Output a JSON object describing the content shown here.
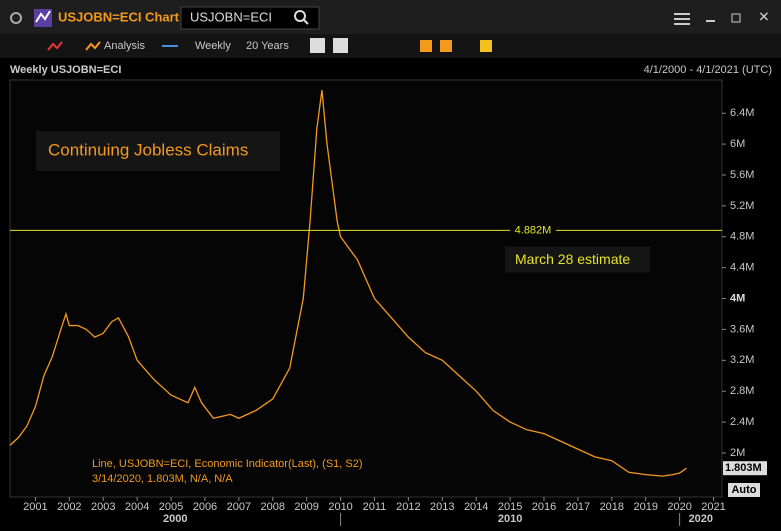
{
  "window": {
    "title": "USJOBN=ECI Chart",
    "search": "USJOBN=ECI"
  },
  "toolbar": {
    "analysis": "Analysis",
    "interval": "Weekly",
    "range": "20 Years"
  },
  "chart_header": {
    "title": "Weekly USJOBN=ECI",
    "range": "4/1/2000 - 4/1/2021 (UTC)"
  },
  "chart_data": {
    "type": "line",
    "title": "Continuing Jobless Claims",
    "x": [
      2000.25,
      2000.5,
      2000.75,
      2001.0,
      2001.25,
      2001.5,
      2001.75,
      2001.9,
      2002.0,
      2002.25,
      2002.5,
      2002.75,
      2003.0,
      2003.25,
      2003.45,
      2003.75,
      2004.0,
      2004.5,
      2005.0,
      2005.5,
      2005.7,
      2005.9,
      2006.25,
      2006.75,
      2007.0,
      2007.5,
      2008.0,
      2008.5,
      2008.9,
      2009.1,
      2009.3,
      2009.45,
      2009.6,
      2009.9,
      2010.0,
      2010.5,
      2011.0,
      2011.5,
      2012.0,
      2012.5,
      2013.0,
      2013.5,
      2014.0,
      2014.5,
      2015.0,
      2015.5,
      2016.0,
      2016.5,
      2017.0,
      2017.5,
      2018.0,
      2018.5,
      2019.0,
      2019.5,
      2019.8,
      2020.0,
      2020.2
    ],
    "series": [
      {
        "color": "#f39a1d",
        "values": [
          2100000,
          2200000,
          2350000,
          2600000,
          3000000,
          3250000,
          3600000,
          3800000,
          3650000,
          3650000,
          3600000,
          3500000,
          3550000,
          3700000,
          3750000,
          3500000,
          3200000,
          2950000,
          2750000,
          2650000,
          2850000,
          2650000,
          2450000,
          2500000,
          2450000,
          2550000,
          2700000,
          3100000,
          4000000,
          5000000,
          6200000,
          6700000,
          6000000,
          5000000,
          4800000,
          4500000,
          4000000,
          3750000,
          3500000,
          3300000,
          3200000,
          3000000,
          2800000,
          2550000,
          2400000,
          2300000,
          2250000,
          2150000,
          2050000,
          1950000,
          1900000,
          1750000,
          1720000,
          1700000,
          1720000,
          1740000,
          1803000
        ]
      }
    ],
    "xlim": [
      2000.25,
      2021.25
    ],
    "xticks": [
      2001,
      2002,
      2003,
      2004,
      2005,
      2006,
      2007,
      2008,
      2009,
      2010,
      2011,
      2012,
      2013,
      2014,
      2015,
      2016,
      2017,
      2018,
      2019,
      2020,
      2021
    ],
    "decades": [
      {
        "value": 2000,
        "label": "2000"
      },
      {
        "value": 2010,
        "label": "2010"
      },
      {
        "value": 2020,
        "label": "2020"
      }
    ],
    "ylim": [
      1430000,
      6830000
    ],
    "yticks": [
      {
        "value": 2000000,
        "label": "2M"
      },
      {
        "value": 2400000,
        "label": "2.4M"
      },
      {
        "value": 2800000,
        "label": "2.8M"
      },
      {
        "value": 3200000,
        "label": "3.2M"
      },
      {
        "value": 3600000,
        "label": "3.6M"
      },
      {
        "value": 4000000,
        "label": "4M"
      },
      {
        "value": 4400000,
        "label": "4.4M"
      },
      {
        "value": 4800000,
        "label": "4.8M"
      },
      {
        "value": 5200000,
        "label": "5.2M"
      },
      {
        "value": 5600000,
        "label": "5.6M"
      },
      {
        "value": 6000000,
        "label": "6M"
      },
      {
        "value": 6400000,
        "label": "6.4M"
      }
    ],
    "reference_line": {
      "value": 4882000,
      "label": "4.882M",
      "annotation": "March 28 estimate",
      "color": "#e5e52a"
    },
    "last_value": {
      "value": 1803000,
      "label": "1.803M"
    },
    "legend": [
      "Line, USJOBN=ECI, Economic Indicator(Last), (S1, S2)",
      "3/14/2020, 1.803M, N/A, N/A"
    ],
    "auto_button": "Auto"
  }
}
